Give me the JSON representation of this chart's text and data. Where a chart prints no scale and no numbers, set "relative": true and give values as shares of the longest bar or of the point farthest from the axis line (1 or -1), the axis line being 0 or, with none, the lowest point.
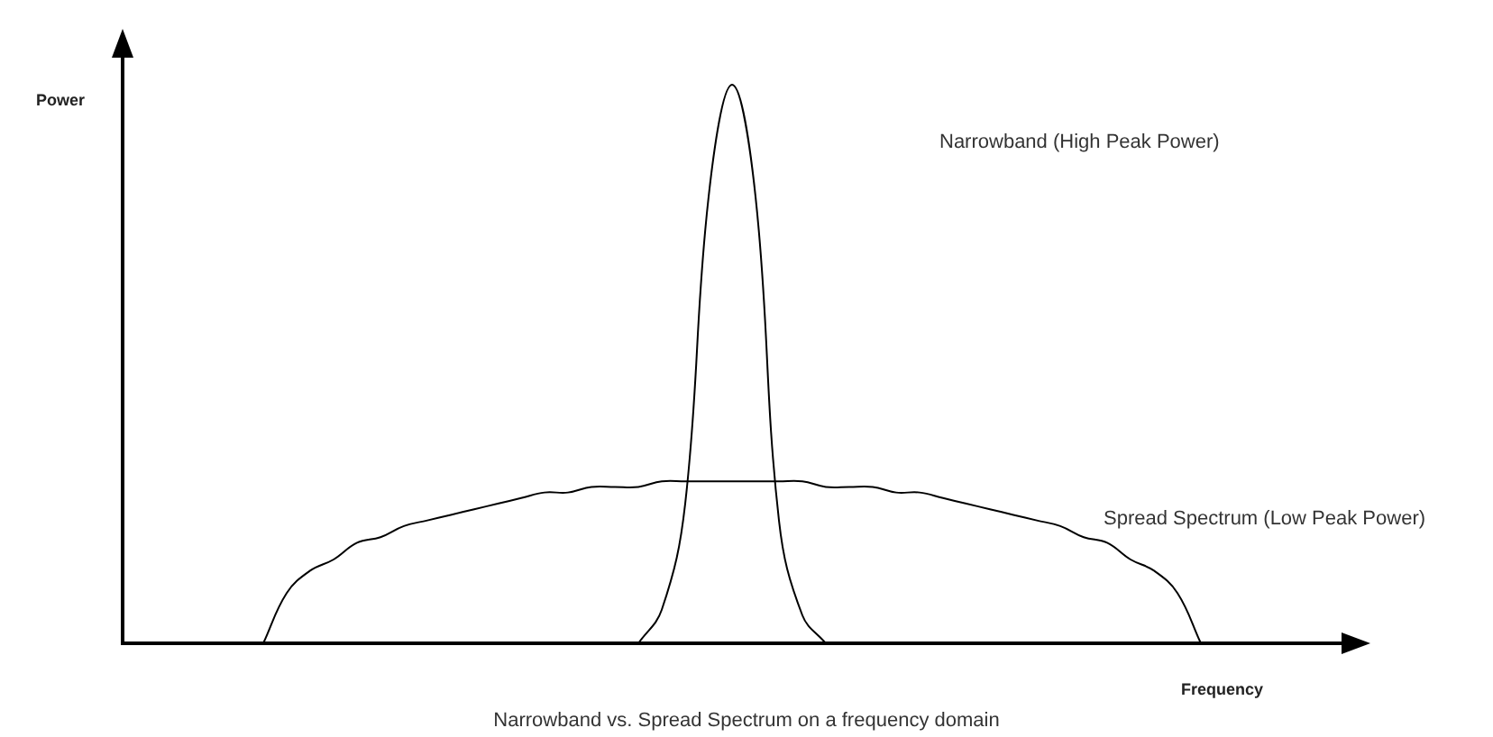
{
  "chart_data": {
    "type": "line",
    "relative": true,
    "xlabel": "Frequency",
    "ylabel": "Power",
    "legend": false,
    "grid": false,
    "categories": [
      null,
      null,
      null,
      null,
      null,
      null,
      null,
      null,
      null,
      null,
      null,
      null,
      null,
      null,
      null,
      null,
      null,
      null,
      null,
      null,
      null,
      null,
      null,
      null,
      null,
      null,
      null,
      null,
      null,
      null,
      null,
      null,
      null,
      null,
      null,
      null,
      null,
      null,
      null,
      null,
      null,
      null,
      null,
      null,
      null,
      null,
      null,
      null,
      null,
      null,
      null,
      null,
      null
    ],
    "series": [
      {
        "color": "#000000",
        "values": [
          null,
          null,
          null,
          null,
          null,
          null,
          null,
          null,
          null,
          null,
          null,
          null,
          null,
          null,
          null,
          null,
          null,
          null,
          null,
          null,
          null,
          null,
          0,
          0.06,
          0.25,
          0.8,
          1,
          0.8,
          0.22,
          0.05,
          0,
          null,
          null,
          null,
          null,
          null,
          null,
          null,
          null,
          null,
          null,
          null,
          null,
          null,
          null,
          null,
          null,
          null,
          null,
          null,
          null,
          null,
          null
        ]
      },
      {
        "color": "#000000",
        "values": [
          null,
          null,
          null,
          null,
          null,
          null,
          0,
          0.09,
          0.13,
          0.15,
          0.18,
          0.19,
          0.21,
          0.22,
          0.23,
          0.24,
          0.25,
          0.26,
          0.27,
          0.27,
          0.28,
          0.28,
          0.28,
          0.29,
          0.29,
          0.29,
          0.29,
          0.29,
          0.29,
          0.29,
          0.28,
          0.28,
          0.28,
          0.27,
          0.27,
          0.26,
          0.25,
          0.24,
          0.23,
          0.22,
          0.21,
          0.19,
          0.18,
          0.15,
          0.13,
          0.09,
          0,
          null,
          null,
          null,
          null,
          null,
          null
        ]
      }
    ],
    "annotations": [
      "Narrowband (High Peak Power)",
      "Spread Spectrum (Low Peak Power)",
      "Narrowband vs. Spread Spectrum on a frequency domain"
    ]
  }
}
